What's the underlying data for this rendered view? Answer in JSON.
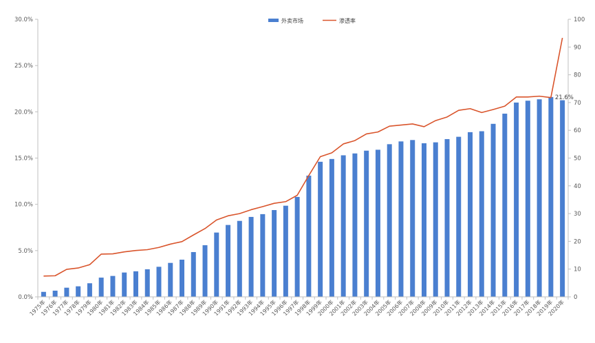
{
  "chart_data": {
    "type": "bar+line",
    "title": "",
    "xlabel": "",
    "ylabel_left": "",
    "ylabel_right": "",
    "categories": [
      "1975年",
      "1976年",
      "1977年",
      "1978年",
      "1979年",
      "1980年",
      "1981年",
      "1982年",
      "1983年",
      "1984年",
      "1985年",
      "1986年",
      "1987年",
      "1988年",
      "1989年",
      "1990年",
      "1991年",
      "1992年",
      "1993年",
      "1994年",
      "1995年",
      "1996年",
      "1997年",
      "1998年",
      "1999年",
      "2000年",
      "2001年",
      "2002年",
      "2003年",
      "2004年",
      "2005年",
      "2006年",
      "2007年",
      "2008年",
      "2009年",
      "2010年",
      "2011年",
      "2012年",
      "2013年",
      "2014年",
      "2015年",
      "2016年",
      "2017年",
      "2018年",
      "2019年",
      "2020年"
    ],
    "series": [
      {
        "name": "外卖市场",
        "type": "bar",
        "axis": "left",
        "unit": "%",
        "color": "#4A7FD0",
        "values": [
          0.54,
          0.67,
          0.99,
          1.14,
          1.47,
          2.08,
          2.26,
          2.63,
          2.76,
          2.98,
          3.25,
          3.67,
          4.02,
          4.84,
          5.58,
          6.95,
          7.77,
          8.21,
          8.64,
          8.94,
          9.38,
          9.85,
          10.8,
          13.1,
          14.6,
          14.9,
          15.3,
          15.5,
          15.8,
          15.9,
          16.5,
          16.8,
          16.95,
          16.6,
          16.7,
          17.05,
          17.3,
          17.8,
          17.9,
          18.7,
          19.8,
          21.0,
          21.2,
          21.35,
          21.6,
          21.25
        ]
      },
      {
        "name": "渗透率",
        "type": "line",
        "axis": "right",
        "color": "#D9542B",
        "values": [
          7.5,
          7.6,
          9.9,
          10.4,
          11.6,
          15.4,
          15.5,
          16.2,
          16.7,
          17.0,
          17.8,
          19.0,
          19.9,
          22.3,
          24.6,
          27.7,
          29.2,
          30.0,
          31.4,
          32.5,
          33.7,
          34.3,
          36.6,
          43.7,
          50.5,
          51.9,
          55.1,
          56.3,
          58.7,
          59.4,
          61.5,
          61.9,
          62.3,
          61.3,
          63.5,
          64.8,
          67.2,
          67.8,
          66.4,
          67.5,
          68.7,
          72.0,
          72.0,
          72.3,
          71.8,
          93.3
        ]
      }
    ],
    "annotations": [
      {
        "category": "2019年",
        "series": "外卖市场",
        "text": "21.6%"
      }
    ],
    "left_axis": {
      "min": 0,
      "max": 30,
      "step": 5,
      "ticks": [
        "0.0%",
        "5.0%",
        "10.0%",
        "15.0%",
        "20.0%",
        "25.0%",
        "30.0%"
      ]
    },
    "right_axis": {
      "min": 0,
      "max": 100,
      "step": 10,
      "ticks": [
        "0",
        "10",
        "20",
        "30",
        "40",
        "50",
        "60",
        "70",
        "80",
        "90",
        "100"
      ]
    },
    "legend": {
      "position": "top-center",
      "entries": [
        {
          "label": "外卖市场",
          "kind": "bar",
          "color": "#4A7FD0"
        },
        {
          "label": "渗透率",
          "kind": "line",
          "color": "#D9542B"
        }
      ]
    },
    "grid": false
  }
}
